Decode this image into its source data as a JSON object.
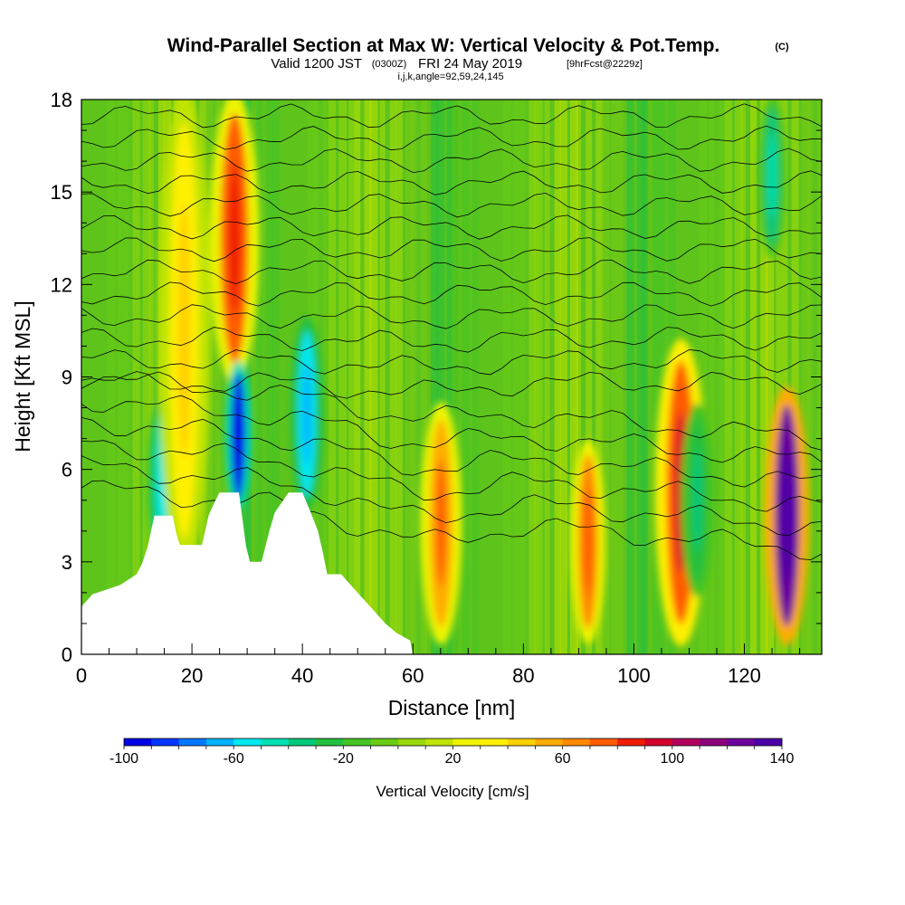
{
  "title": {
    "main": "Wind-Parallel Section at Max W: Vertical Velocity & Pot.Temp.",
    "copyright": "(C)",
    "valid_prefix": "Valid 1200 JST",
    "valid_utc": "(0300Z)",
    "valid_date": "FRI 24 May 2019",
    "forecast": "[9hrFcst@2229z]",
    "params": "i,j,k,angle=92,59,24,145"
  },
  "chart_data": {
    "type": "heatmap",
    "xlabel": "Distance [nm]",
    "ylabel": "Height [Kft MSL]",
    "xlim": [
      0,
      134
    ],
    "ylim": [
      0,
      18
    ],
    "x_ticks": [
      0,
      20,
      40,
      60,
      80,
      100,
      120
    ],
    "y_ticks": [
      0,
      3,
      6,
      9,
      12,
      15,
      18
    ],
    "colorbar": {
      "label": "Vertical Velocity [cm/s]",
      "min": -100,
      "max": 140,
      "step": 10,
      "tick_values": [
        -100,
        -60,
        -20,
        20,
        60,
        100,
        140
      ],
      "colors": [
        "#0000e6",
        "#0036ff",
        "#0077ff",
        "#00b2ff",
        "#00e8f0",
        "#00e0b4",
        "#00c87a",
        "#22c040",
        "#44c424",
        "#68cc14",
        "#98d80a",
        "#c0e400",
        "#eef400",
        "#fff000",
        "#ffd000",
        "#ffac00",
        "#ff8800",
        "#ff5c00",
        "#f01c00",
        "#d4002c",
        "#b0005c",
        "#8c007c",
        "#6c009c",
        "#4c00a8"
      ]
    },
    "features": [
      {
        "x_center": 14.6,
        "y_bottom": 3.0,
        "y_top": 8.2,
        "w": -45
      },
      {
        "x_center": 18.6,
        "y_bottom": 3.0,
        "y_top": 18.0,
        "w": 30
      },
      {
        "x_center": 27.7,
        "y_bottom": 9.0,
        "y_top": 18.0,
        "w": 70
      },
      {
        "x_center": 28.4,
        "y_bottom": 4.8,
        "y_top": 9.4,
        "w": -95
      },
      {
        "x_center": 40.8,
        "y_bottom": 4.8,
        "y_top": 10.8,
        "w": -60
      },
      {
        "x_center": 65.1,
        "y_bottom": 0.5,
        "y_top": 8.0,
        "w": 55
      },
      {
        "x_center": 91.7,
        "y_bottom": 0.5,
        "y_top": 6.8,
        "w": 60
      },
      {
        "x_center": 108.5,
        "y_bottom": 0.5,
        "y_top": 10.0,
        "w": 75
      },
      {
        "x_center": 111.5,
        "y_bottom": 2.0,
        "y_top": 8.0,
        "w": -30
      },
      {
        "x_center": 127.7,
        "y_bottom": 0.5,
        "y_top": 8.5,
        "w": 125
      },
      {
        "x_center": 125.0,
        "y_bottom": 13.0,
        "y_top": 18.0,
        "w": -40
      }
    ],
    "terrain_height_kft": [
      [
        0,
        1.55
      ],
      [
        2,
        1.95
      ],
      [
        7,
        2.25
      ],
      [
        10,
        2.6
      ],
      [
        11,
        2.95
      ],
      [
        12,
        3.5
      ],
      [
        12.6,
        4.0
      ],
      [
        13.2,
        4.5
      ],
      [
        16.5,
        4.5
      ],
      [
        17.2,
        3.9
      ],
      [
        17.8,
        3.55
      ],
      [
        21.8,
        3.55
      ],
      [
        22.4,
        4.0
      ],
      [
        23.0,
        4.5
      ],
      [
        24.0,
        4.9
      ],
      [
        25.0,
        5.25
      ],
      [
        28.5,
        5.25
      ],
      [
        29.2,
        4.3
      ],
      [
        29.8,
        3.5
      ],
      [
        30.5,
        3.0
      ],
      [
        32.6,
        3.0
      ],
      [
        33.3,
        3.5
      ],
      [
        34.0,
        4.0
      ],
      [
        35.0,
        4.6
      ],
      [
        37.5,
        5.25
      ],
      [
        40.0,
        5.25
      ],
      [
        41.5,
        4.6
      ],
      [
        42.8,
        4.0
      ],
      [
        43.7,
        3.3
      ],
      [
        44.5,
        2.6
      ],
      [
        47.0,
        2.6
      ],
      [
        49.0,
        2.2
      ],
      [
        51.0,
        1.8
      ],
      [
        53.0,
        1.4
      ],
      [
        55.0,
        1.0
      ],
      [
        57.0,
        0.7
      ],
      [
        59.5,
        0.45
      ],
      [
        60.0,
        0.0
      ]
    ],
    "pot_temp_contours": 19
  }
}
